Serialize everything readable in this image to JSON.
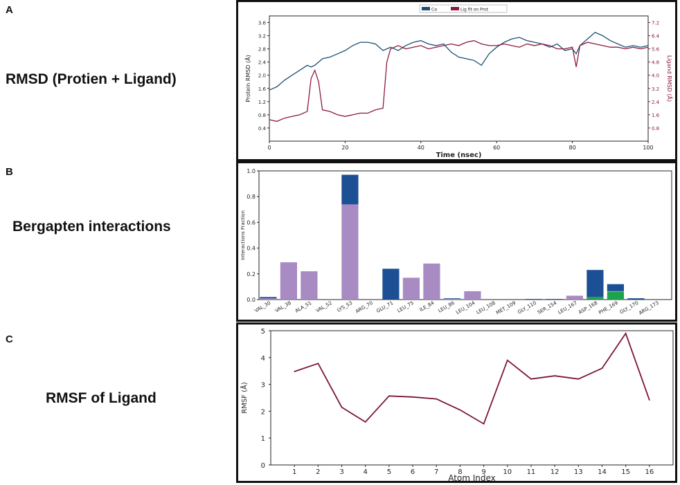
{
  "panels": [
    {
      "letter": "A",
      "description": "RMSD (Protien + Ligand)"
    },
    {
      "letter": "B",
      "description": "Bergapten interactions"
    },
    {
      "letter": "C",
      "description": "RMSF of Ligand"
    }
  ],
  "chart_data": [
    {
      "type": "line",
      "xlabel": "Time (nsec)",
      "ylabel": "Protein RMSD (Å)",
      "ylabel_right": "Ligand RMSD (Å)",
      "xlim": [
        0,
        100
      ],
      "ylim": [
        0,
        3.8
      ],
      "ylim_right": [
        0,
        7.6
      ],
      "xticks": [
        0,
        20,
        40,
        60,
        80,
        100
      ],
      "yticks": [
        0.4,
        0.8,
        1.2,
        1.6,
        2.0,
        2.4,
        2.8,
        3.2,
        3.6
      ],
      "yticks_right": [
        0.8,
        1.6,
        2.4,
        3.2,
        4.0,
        4.8,
        5.6,
        6.4,
        7.2
      ],
      "legend_position": "top",
      "x": [
        0,
        2,
        4,
        6,
        8,
        10,
        11,
        12,
        13,
        14,
        16,
        18,
        20,
        22,
        24,
        26,
        28,
        30,
        31,
        32,
        34,
        36,
        38,
        40,
        42,
        44,
        46,
        48,
        50,
        52,
        54,
        56,
        58,
        60,
        62,
        64,
        66,
        68,
        70,
        72,
        74,
        76,
        78,
        80,
        81,
        82,
        84,
        86,
        88,
        90,
        92,
        94,
        96,
        98,
        100
      ],
      "series": [
        {
          "name": "Cα",
          "color": "#1b4f72",
          "axis": "left",
          "values": [
            1.55,
            1.65,
            1.85,
            2.0,
            2.15,
            2.3,
            2.25,
            2.3,
            2.4,
            2.5,
            2.55,
            2.65,
            2.75,
            2.9,
            3.0,
            3.0,
            2.95,
            2.75,
            2.8,
            2.85,
            2.75,
            2.9,
            3.0,
            3.05,
            2.95,
            2.9,
            2.95,
            2.7,
            2.55,
            2.5,
            2.45,
            2.3,
            2.65,
            2.85,
            3.0,
            3.1,
            3.15,
            3.05,
            3.0,
            2.95,
            2.85,
            2.95,
            2.75,
            2.8,
            2.65,
            2.9,
            3.1,
            3.3,
            3.2,
            3.05,
            2.95,
            2.85,
            2.9,
            2.85,
            2.9
          ]
        },
        {
          "name": "Lig fit on Prot",
          "color": "#8b1a3a",
          "axis": "right",
          "values": [
            1.3,
            1.2,
            1.4,
            1.5,
            1.6,
            1.8,
            3.8,
            4.3,
            3.6,
            1.9,
            1.8,
            1.6,
            1.5,
            1.6,
            1.7,
            1.7,
            1.9,
            2.0,
            4.8,
            5.6,
            5.8,
            5.6,
            5.7,
            5.8,
            5.6,
            5.7,
            5.8,
            5.9,
            5.8,
            6.0,
            6.1,
            5.9,
            5.8,
            5.8,
            5.9,
            5.8,
            5.7,
            5.9,
            5.8,
            5.9,
            5.8,
            5.6,
            5.6,
            5.7,
            4.5,
            5.8,
            6.0,
            5.9,
            5.8,
            5.7,
            5.7,
            5.6,
            5.7,
            5.6,
            5.7
          ]
        }
      ]
    },
    {
      "type": "bar",
      "ylabel": "Interactions Fraction",
      "ylim": [
        0,
        1.0
      ],
      "yticks": [
        0.0,
        0.2,
        0.4,
        0.6,
        0.8,
        1.0
      ],
      "categories": [
        "VAL_30",
        "VAL_38",
        "ALA_51",
        "VAL_52",
        "LYS_53",
        "ARG_70",
        "GLU_71",
        "LEU_75",
        "ILE_84",
        "LEU_86",
        "LEU_104",
        "LEU_108",
        "MET_109",
        "GLY_110",
        "SER_154",
        "LEU_167",
        "ASP_168",
        "PHE_169",
        "GLY_170",
        "ARG_173"
      ],
      "series": [
        {
          "name": "",
          "color": "#1ca44a",
          "values": [
            0,
            0,
            0,
            0,
            0,
            0,
            0,
            0,
            0,
            0,
            0,
            0,
            0,
            0,
            0,
            0,
            0.02,
            0.06,
            0,
            0
          ]
        },
        {
          "name": "",
          "color": "#a98bc3",
          "values": [
            0.01,
            0.29,
            0.22,
            0,
            0.74,
            0,
            0,
            0.17,
            0.28,
            0.005,
            0.065,
            0,
            0,
            0,
            0,
            0.03,
            0,
            0.005,
            0,
            0
          ]
        },
        {
          "name": "",
          "color": "#1d4f94",
          "values": [
            0.01,
            0,
            0,
            0,
            0.23,
            0,
            0.24,
            0,
            0,
            0.005,
            0,
            0,
            0,
            0.005,
            0.005,
            0,
            0.21,
            0.055,
            0.01,
            0
          ]
        }
      ]
    },
    {
      "type": "line",
      "xlabel": "Atom Index",
      "ylabel": "RMSF (Å)",
      "ylim": [
        0,
        5
      ],
      "yticks": [
        0,
        1,
        2,
        3,
        4,
        5
      ],
      "color": "#7b1438",
      "x": [
        1,
        2,
        3,
        4,
        5,
        6,
        7,
        8,
        9,
        10,
        11,
        12,
        13,
        14,
        15,
        16
      ],
      "values": [
        3.48,
        3.78,
        2.15,
        1.6,
        2.57,
        2.53,
        2.46,
        2.05,
        1.53,
        3.9,
        3.2,
        3.32,
        3.2,
        3.6,
        4.9,
        2.42
      ]
    }
  ]
}
